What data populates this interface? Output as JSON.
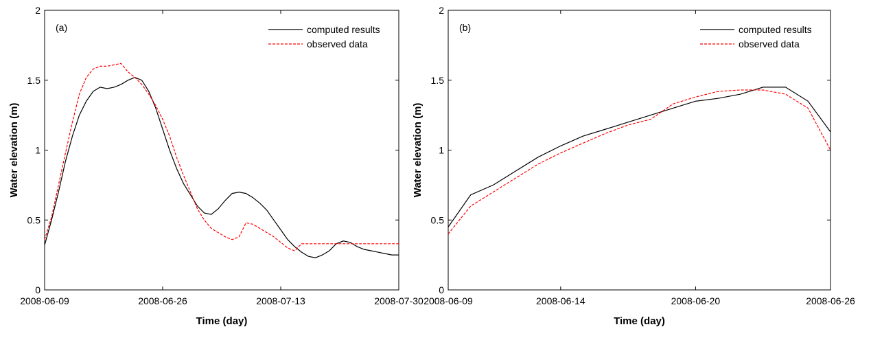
{
  "chart_data": [
    {
      "type": "line",
      "annotation": "(a)",
      "xlabel": "Time (day)",
      "ylabel": "Water elevation (m)",
      "x": [
        "2008-06-09",
        "2008-06-10",
        "2008-06-11",
        "2008-06-12",
        "2008-06-13",
        "2008-06-14",
        "2008-06-15",
        "2008-06-16",
        "2008-06-17",
        "2008-06-18",
        "2008-06-19",
        "2008-06-20",
        "2008-06-21",
        "2008-06-22",
        "2008-06-23",
        "2008-06-24",
        "2008-06-25",
        "2008-06-26",
        "2008-06-27",
        "2008-06-28",
        "2008-06-29",
        "2008-06-30",
        "2008-07-01",
        "2008-07-02",
        "2008-07-03",
        "2008-07-04",
        "2008-07-05",
        "2008-07-06",
        "2008-07-07",
        "2008-07-08",
        "2008-07-09",
        "2008-07-10",
        "2008-07-11",
        "2008-07-12",
        "2008-07-13",
        "2008-07-14",
        "2008-07-15",
        "2008-07-16",
        "2008-07-17",
        "2008-07-18",
        "2008-07-19",
        "2008-07-20",
        "2008-07-21",
        "2008-07-22",
        "2008-07-23",
        "2008-07-24",
        "2008-07-25",
        "2008-07-26",
        "2008-07-27",
        "2008-07-28",
        "2008-07-29",
        "2008-07-30"
      ],
      "series": [
        {
          "name": "computed results",
          "color": "#000000",
          "dash": "solid",
          "values": [
            0.32,
            0.5,
            0.7,
            0.92,
            1.1,
            1.25,
            1.35,
            1.42,
            1.45,
            1.44,
            1.45,
            1.47,
            1.5,
            1.52,
            1.5,
            1.42,
            1.3,
            1.15,
            1.0,
            0.87,
            0.76,
            0.68,
            0.6,
            0.55,
            0.54,
            0.58,
            0.64,
            0.69,
            0.7,
            0.69,
            0.66,
            0.62,
            0.57,
            0.5,
            0.43,
            0.36,
            0.31,
            0.27,
            0.24,
            0.23,
            0.25,
            0.28,
            0.33,
            0.35,
            0.34,
            0.31,
            0.29,
            0.28,
            0.27,
            0.26,
            0.25,
            0.25
          ]
        },
        {
          "name": "observed data",
          "color": "#ff0000",
          "dash": "dashed",
          "values": [
            0.36,
            0.52,
            0.75,
            0.98,
            1.2,
            1.4,
            1.52,
            1.58,
            1.6,
            1.6,
            1.61,
            1.62,
            1.56,
            1.52,
            1.47,
            1.4,
            1.32,
            1.22,
            1.1,
            0.95,
            0.82,
            0.7,
            0.58,
            0.5,
            0.44,
            0.41,
            0.38,
            0.36,
            0.38,
            0.48,
            0.47,
            0.44,
            0.41,
            0.38,
            0.34,
            0.3,
            0.28,
            0.33,
            0.33,
            0.33,
            0.33,
            0.33,
            0.33,
            0.33,
            0.33,
            0.33,
            0.33,
            0.33,
            0.33,
            0.33,
            0.33,
            0.33
          ]
        }
      ],
      "xlim": [
        "2008-06-09",
        "2008-07-30"
      ],
      "xticks": [
        "2008-06-09",
        "2008-06-26",
        "2008-07-13",
        "2008-07-30"
      ],
      "ylim": [
        0,
        2
      ],
      "yticks": [
        0,
        0.5,
        1,
        1.5,
        2
      ],
      "legend": "upper right"
    },
    {
      "type": "line",
      "annotation": "(b)",
      "xlabel": "Time (day)",
      "ylabel": "Water elevation (m)",
      "x": [
        "2008-06-09",
        "2008-06-10",
        "2008-06-11",
        "2008-06-12",
        "2008-06-13",
        "2008-06-14",
        "2008-06-15",
        "2008-06-16",
        "2008-06-17",
        "2008-06-18",
        "2008-06-19",
        "2008-06-20",
        "2008-06-21",
        "2008-06-22",
        "2008-06-23",
        "2008-06-24",
        "2008-06-25",
        "2008-06-26"
      ],
      "series": [
        {
          "name": "computed results",
          "color": "#000000",
          "dash": "solid",
          "values": [
            0.45,
            0.68,
            0.75,
            0.85,
            0.95,
            1.03,
            1.1,
            1.15,
            1.2,
            1.25,
            1.3,
            1.35,
            1.37,
            1.4,
            1.45,
            1.45,
            1.35,
            1.13
          ]
        },
        {
          "name": "observed data",
          "color": "#ff0000",
          "dash": "dashed",
          "values": [
            0.4,
            0.6,
            0.7,
            0.8,
            0.9,
            0.98,
            1.05,
            1.12,
            1.18,
            1.22,
            1.33,
            1.38,
            1.42,
            1.43,
            1.43,
            1.4,
            1.3,
            1.0
          ]
        }
      ],
      "xlim": [
        "2008-06-09",
        "2008-06-26"
      ],
      "xticks": [
        "2008-06-09",
        "2008-06-14",
        "2008-06-20",
        "2008-06-26"
      ],
      "ylim": [
        0,
        2
      ],
      "yticks": [
        0,
        0.5,
        1,
        1.5,
        2
      ],
      "legend": "upper right"
    }
  ]
}
